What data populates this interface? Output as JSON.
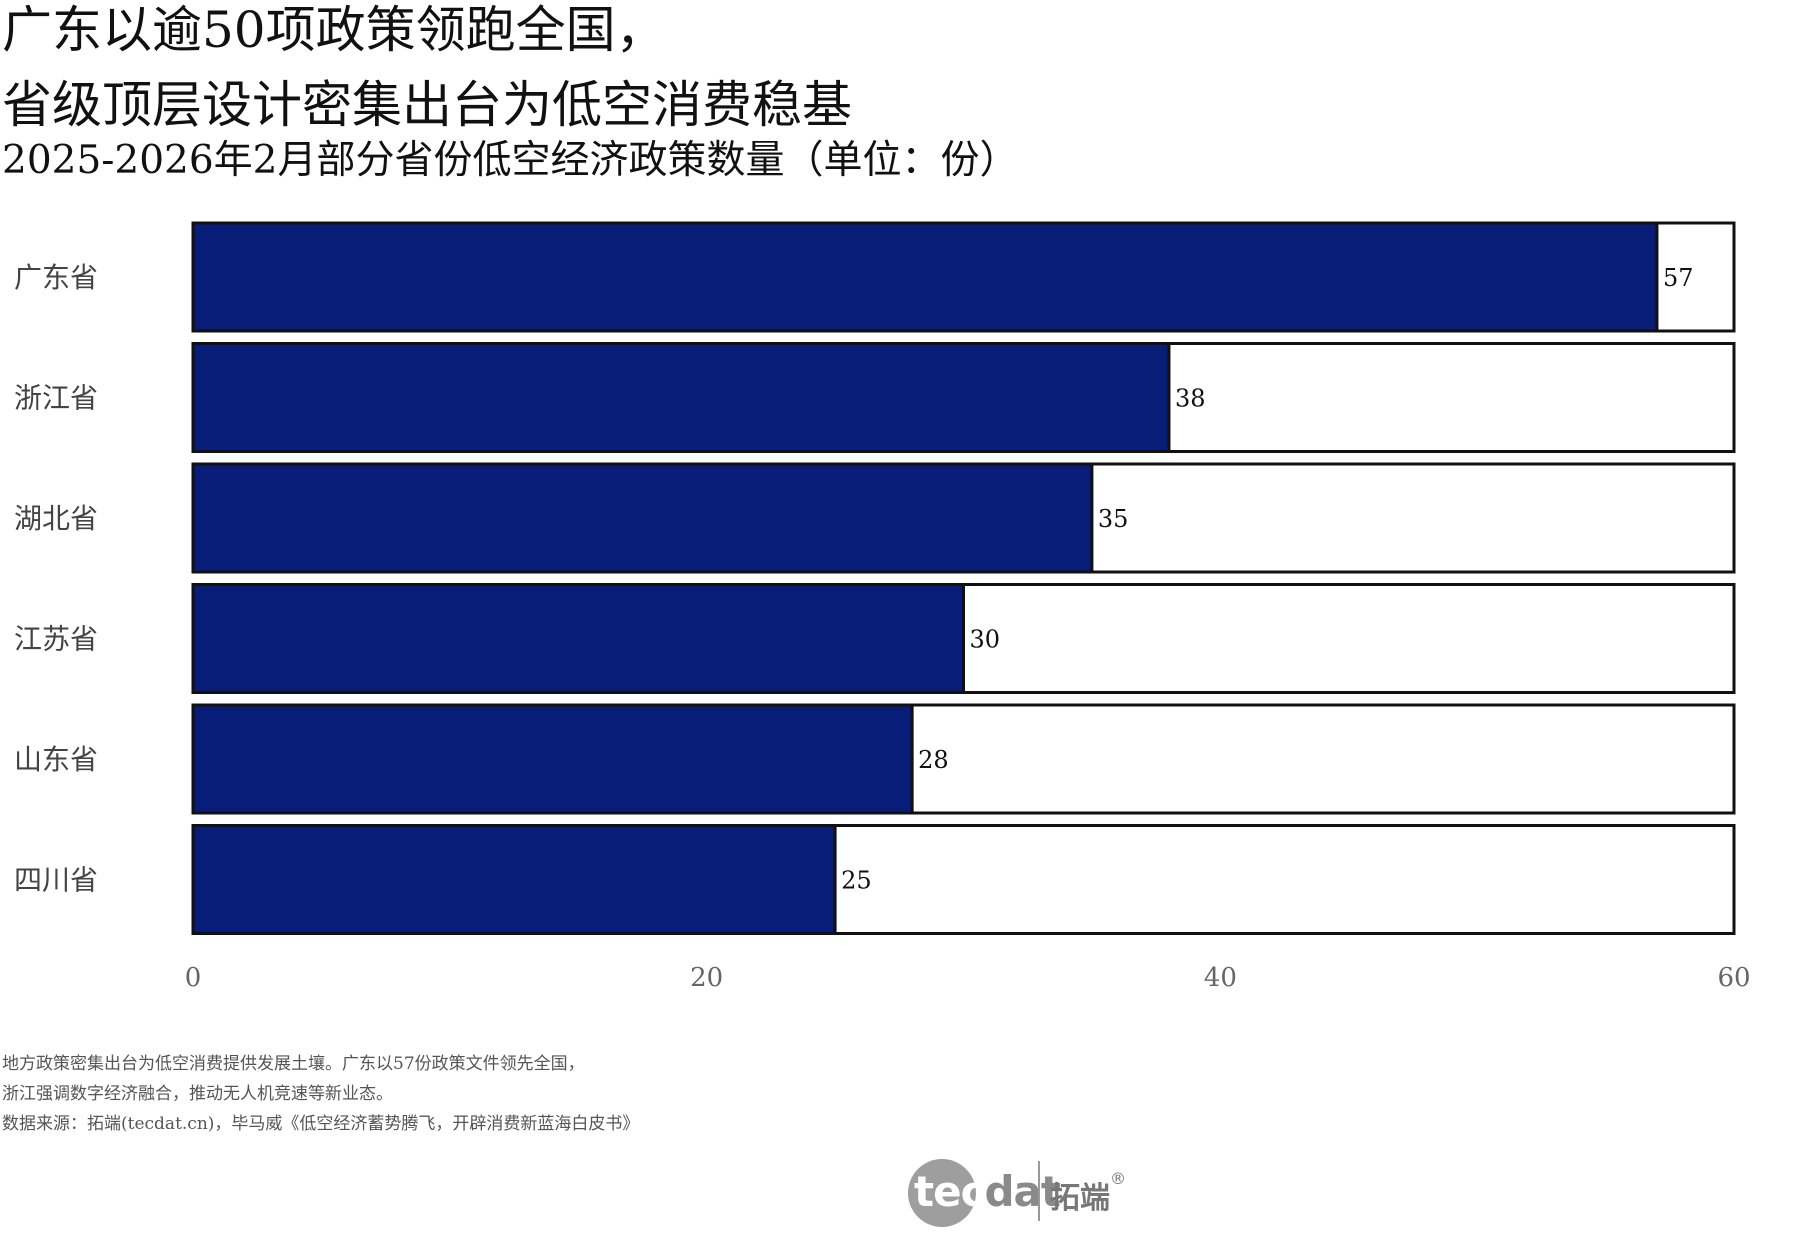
{
  "header": {
    "title_line1": "广东以逾50项政策领跑全国，",
    "title_line2": "省级顶层设计密集出台为低空消费稳基",
    "subtitle": "2025-2026年2月部分省份低空经济政策数量（单位：份）"
  },
  "chart_data": {
    "type": "bar",
    "orientation": "horizontal",
    "title": "2025-2026年2月部分省份低空经济政策数量（单位：份）",
    "xlabel": "",
    "ylabel": "",
    "categories": [
      "广东省",
      "浙江省",
      "湖北省",
      "江苏省",
      "山东省",
      "四川省"
    ],
    "values": [
      57,
      38,
      35,
      30,
      28,
      25
    ],
    "value_labels": [
      "57",
      "38",
      "35",
      "30",
      "28",
      "25"
    ],
    "xlim": [
      0,
      60
    ],
    "x_ticks": [
      0,
      20,
      40,
      60
    ],
    "x_tick_labels": [
      "0",
      "20",
      "40",
      "60"
    ],
    "grid": false,
    "bar_color": "#071d78",
    "track_color": "#ffffff"
  },
  "notes": {
    "line1": "地方政策密集出台为低空消费提供发展土壤。广东以57份政策文件领先全国，",
    "line2": "浙江强调数字经济融合，推动无人机竞速等新业态。",
    "line3": "数据来源：拓端(tecdat.cn)，毕马威《低空经济蓄势腾飞，开辟消费新蓝海白皮书》"
  },
  "logo": {
    "word_part1": "tec",
    "word_part2": "dat",
    "chinese": "拓端",
    "registered": "®"
  }
}
